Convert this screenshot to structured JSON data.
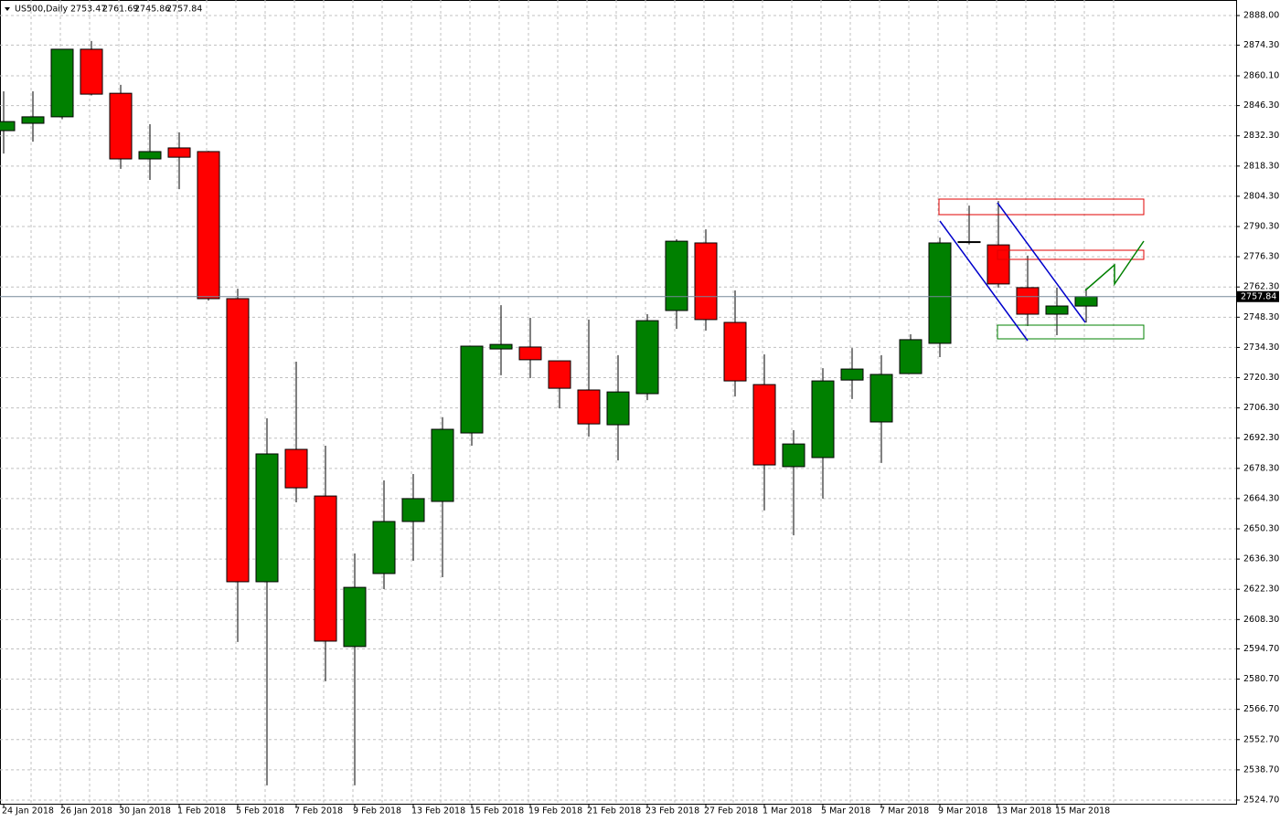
{
  "chart_data": {
    "type": "candlestick",
    "symbol": "US500,Daily",
    "categories": [
      "24 Jan 2018",
      null,
      "26 Jan 2018",
      null,
      "30 Jan 2018",
      null,
      "1 Feb 2018",
      null,
      "5 Feb 2018",
      null,
      "7 Feb 2018",
      null,
      "9 Feb 2018",
      null,
      "13 Feb 2018",
      null,
      "15 Feb 2018",
      null,
      "19 Feb 2018",
      null,
      "21 Feb 2018",
      null,
      "23 Feb 2018",
      null,
      "27 Feb 2018",
      null,
      "1 Mar 2018",
      null,
      "5 Mar 2018",
      null,
      "7 Mar 2018",
      null,
      "9 Mar 2018",
      null,
      "13 Mar 2018",
      null,
      "15 Mar 2018",
      null
    ],
    "open": [
      2834.7,
      2838.1,
      2841.1,
      2872.4,
      2852.0,
      2821.6,
      2826.7,
      2825.0,
      2756.9,
      2625.8,
      2687.1,
      2665.5,
      2595.8,
      2629.6,
      2653.7,
      2663.0,
      2694.7,
      2733.6,
      2734.5,
      2728.1,
      2714.6,
      2698.5,
      2712.9,
      2751.4,
      2782.7,
      2745.9,
      2717.1,
      2679.1,
      2683.3,
      2719.2,
      2699.8,
      2722.2,
      2736.2,
      2783.1,
      2781.8,
      2762.0,
      2749.7,
      2753.47
    ],
    "high": [
      2852.9,
      2852.9,
      2872.5,
      2876.2,
      2855.9,
      2837.7,
      2833.9,
      2825.3,
      2761.5,
      2701.5,
      2727.7,
      2688.8,
      2638.9,
      2672.7,
      2675.7,
      2702.0,
      2735.0,
      2753.9,
      2748.0,
      2728.2,
      2747.2,
      2730.7,
      2749.7,
      2784.4,
      2789.0,
      2760.7,
      2731.1,
      2696.0,
      2724.7,
      2734.0,
      2730.7,
      2740.4,
      2785.2,
      2800.0,
      2802.1,
      2776.8,
      2762.0,
      2761.69
    ],
    "low": [
      2824.1,
      2829.6,
      2840.0,
      2851.0,
      2817.0,
      2811.9,
      2807.6,
      2756.0,
      2597.9,
      2531.5,
      2662.6,
      2579.7,
      2531.5,
      2622.4,
      2635.5,
      2627.9,
      2688.8,
      2721.4,
      2720.1,
      2706.1,
      2693.0,
      2682.0,
      2709.9,
      2742.9,
      2742.1,
      2711.6,
      2658.8,
      2647.3,
      2664.3,
      2710.4,
      2680.8,
      2722.0,
      2729.8,
      2782.0,
      2762.0,
      2744.2,
      2740.0,
      2745.86
    ],
    "close": [
      2838.9,
      2841.1,
      2872.4,
      2851.6,
      2821.6,
      2825.0,
      2822.4,
      2756.9,
      2625.8,
      2685.0,
      2669.3,
      2598.3,
      2623.2,
      2653.7,
      2664.3,
      2696.4,
      2734.9,
      2735.7,
      2728.6,
      2715.4,
      2698.9,
      2713.7,
      2746.7,
      2783.5,
      2747.2,
      2718.8,
      2679.9,
      2689.6,
      2718.8,
      2724.3,
      2721.8,
      2737.9,
      2782.7,
      2783.3,
      2763.7,
      2749.7,
      2753.5,
      2757.84
    ],
    "up_color": "#008000",
    "down_color": "#ff0000",
    "grid": true,
    "ylim": [
      2523,
      2895.2
    ],
    "yticks": [
      {
        "value": 2888,
        "label": "2888.00"
      },
      {
        "value": 2874.3,
        "label": "2874.30"
      },
      {
        "value": 2860.1,
        "label": "2860.10"
      },
      {
        "value": 2846.3,
        "label": "2846.30"
      },
      {
        "value": 2832.3,
        "label": "2832.30"
      },
      {
        "value": 2818.3,
        "label": "2818.30"
      },
      {
        "value": 2804.3,
        "label": "2804.30"
      },
      {
        "value": 2790.3,
        "label": "2790.30"
      },
      {
        "value": 2776.3,
        "label": "2776.30"
      },
      {
        "value": 2762.3,
        "label": "2762.30"
      },
      {
        "value": 2748.3,
        "label": "2748.30"
      },
      {
        "value": 2734.3,
        "label": "2734.30"
      },
      {
        "value": 2720.3,
        "label": "2720.30"
      },
      {
        "value": 2706.3,
        "label": "2706.30"
      },
      {
        "value": 2692.3,
        "label": "2692.30"
      },
      {
        "value": 2678.3,
        "label": "2678.30"
      },
      {
        "value": 2664.3,
        "label": "2664.30"
      },
      {
        "value": 2650.3,
        "label": "2650.30"
      },
      {
        "value": 2636.3,
        "label": "2636.30"
      },
      {
        "value": 2622.3,
        "label": "2622.30"
      },
      {
        "value": 2608.3,
        "label": "2608.30"
      },
      {
        "value": 2594.7,
        "label": "2594.70"
      },
      {
        "value": 2580.7,
        "label": "2580.70"
      },
      {
        "value": 2566.7,
        "label": "2566.70"
      },
      {
        "value": 2552.7,
        "label": "2552.70"
      },
      {
        "value": 2538.7,
        "label": "2538.70"
      },
      {
        "value": 2524.7,
        "label": "2524.70"
      }
    ]
  }
}
